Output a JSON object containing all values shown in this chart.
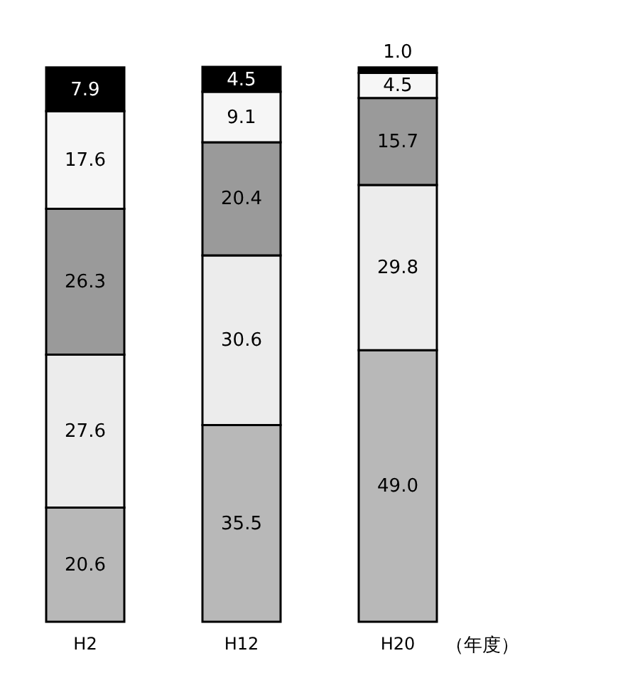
{
  "chart_data": {
    "type": "bar",
    "stacked": true,
    "xlabel": "（年度）",
    "categories": [
      "H2",
      "H12",
      "H20"
    ],
    "series": [
      {
        "color": "#b8b8b8",
        "values": [
          20.6,
          35.5,
          49.0
        ],
        "value_labels": [
          "20.6",
          "35.5",
          "49.0"
        ]
      },
      {
        "color": "#ececec",
        "values": [
          27.6,
          30.6,
          29.8
        ],
        "value_labels": [
          "27.6",
          "30.6",
          "29.8"
        ]
      },
      {
        "color": "#9a9a9a",
        "values": [
          26.3,
          20.4,
          15.7
        ],
        "value_labels": [
          "26.3",
          "20.4",
          "15.7"
        ]
      },
      {
        "color": "#f6f6f6",
        "values": [
          17.6,
          9.1,
          4.5
        ],
        "value_labels": [
          "17.6",
          "9.1",
          "4.5"
        ]
      },
      {
        "color": "#000000",
        "values": [
          7.9,
          4.5,
          1.0
        ],
        "value_labels": [
          "7.9",
          "4.5",
          "1.0"
        ]
      }
    ]
  }
}
